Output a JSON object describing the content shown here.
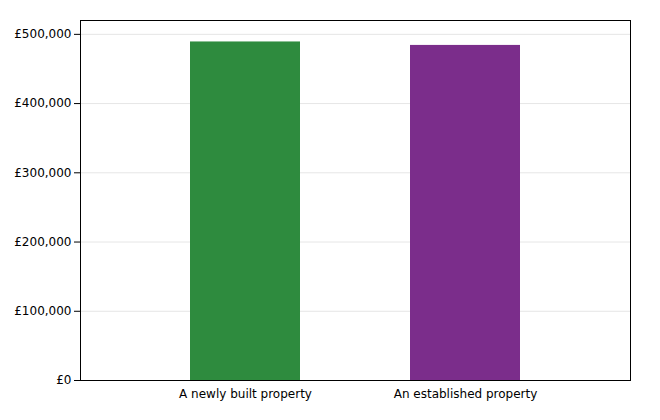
{
  "chart_data": {
    "type": "bar",
    "categories": [
      "A newly built property",
      "An established property"
    ],
    "values": [
      489000,
      484000
    ],
    "colors": [
      "#2e8b3e",
      "#7b2d8b"
    ],
    "ylim": [
      0,
      520000
    ],
    "yticks": [
      {
        "value": 0,
        "label": "£0"
      },
      {
        "value": 100000,
        "label": "£100,000"
      },
      {
        "value": 200000,
        "label": "£200,000"
      },
      {
        "value": 300000,
        "label": "£300,000"
      },
      {
        "value": 400000,
        "label": "£400,000"
      },
      {
        "value": 500000,
        "label": "£500,000"
      }
    ],
    "grid": true
  }
}
